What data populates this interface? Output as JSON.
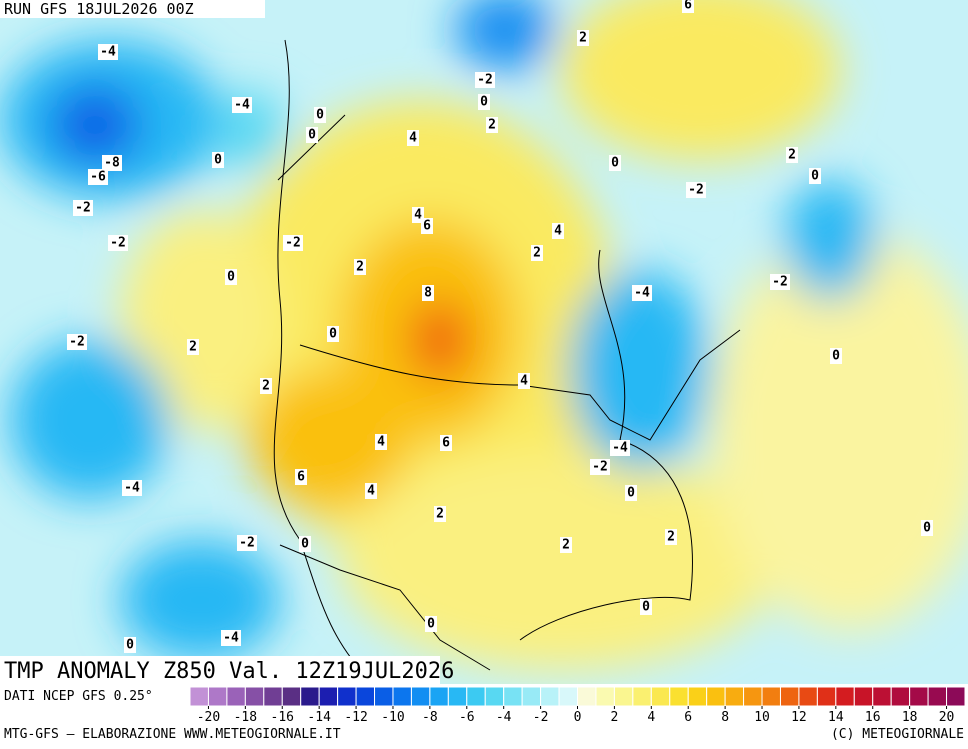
{
  "header": {
    "run": "RUN GFS 18JUL2026 00Z"
  },
  "map": {
    "title": "TMP ANOMALY Z850 Val. 12Z19JUL2026",
    "contour_labels": [
      -4,
      -4,
      0,
      0,
      0,
      -8,
      -6,
      -2,
      -2,
      0,
      -2,
      2,
      4,
      6,
      8,
      0,
      2,
      -2,
      2,
      4,
      6,
      6,
      4,
      -4,
      2,
      -2,
      0,
      0,
      -4,
      0,
      2,
      0,
      2,
      0,
      -2,
      -4,
      4,
      -4,
      2,
      4,
      4,
      -2,
      0,
      2,
      2,
      6,
      0,
      -2,
      2,
      0,
      -2,
      0,
      0
    ]
  },
  "colorbar": {
    "source": "DATI NCEP GFS 0.25°",
    "range": [
      -21,
      21
    ],
    "ticks": [
      -20,
      -18,
      -16,
      -14,
      -12,
      -10,
      -8,
      -6,
      -4,
      -2,
      0,
      2,
      4,
      6,
      8,
      10,
      12,
      14,
      16,
      18,
      20
    ],
    "colors": [
      "#c291d6",
      "#ae78c8",
      "#9a62b8",
      "#8650a6",
      "#703e94",
      "#5a2f84",
      "#2a1a8c",
      "#1c1eb0",
      "#1030cc",
      "#0a46dc",
      "#0a5ee6",
      "#0c76ee",
      "#128ef2",
      "#1aa4f4",
      "#28b8f4",
      "#3ccaf2",
      "#58d8f2",
      "#78e2f4",
      "#98eaf6",
      "#b8f2f8",
      "#d8f8fa",
      "#fafad8",
      "#fafab0",
      "#faf690",
      "#faf070",
      "#fae850",
      "#fae030",
      "#fad018",
      "#fac010",
      "#f8ac10",
      "#f69610",
      "#f27e10",
      "#ee6410",
      "#e84a14",
      "#e03018",
      "#d41c20",
      "#c81428",
      "#bc1034",
      "#b00c3e",
      "#a40a48",
      "#980a50",
      "#8c0a58"
    ]
  },
  "footer": {
    "left": "MTG-GFS — ELABORAZIONE WWW.METEOGIORNALE.IT",
    "right": "(C) METEOGIORNALE"
  }
}
